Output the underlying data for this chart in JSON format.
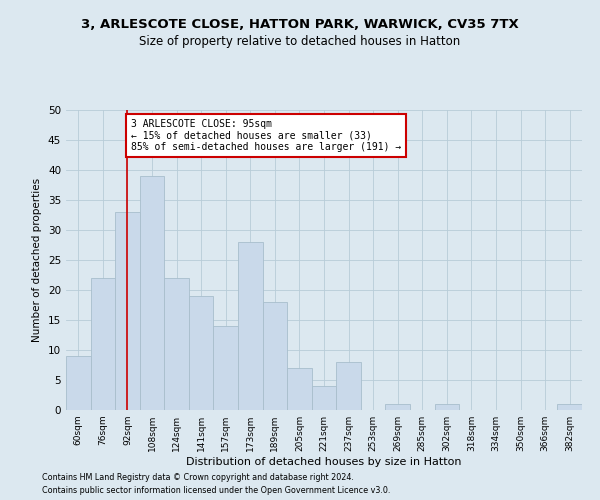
{
  "title1": "3, ARLESCOTE CLOSE, HATTON PARK, WARWICK, CV35 7TX",
  "title2": "Size of property relative to detached houses in Hatton",
  "xlabel": "Distribution of detached houses by size in Hatton",
  "ylabel": "Number of detached properties",
  "footnote1": "Contains HM Land Registry data © Crown copyright and database right 2024.",
  "footnote2": "Contains public sector information licensed under the Open Government Licence v3.0.",
  "bar_labels": [
    "60sqm",
    "76sqm",
    "92sqm",
    "108sqm",
    "124sqm",
    "141sqm",
    "157sqm",
    "173sqm",
    "189sqm",
    "205sqm",
    "221sqm",
    "237sqm",
    "253sqm",
    "269sqm",
    "285sqm",
    "302sqm",
    "318sqm",
    "334sqm",
    "350sqm",
    "366sqm",
    "382sqm"
  ],
  "bar_values": [
    9,
    22,
    33,
    39,
    22,
    19,
    14,
    28,
    18,
    7,
    4,
    8,
    0,
    1,
    0,
    1,
    0,
    0,
    0,
    0,
    1
  ],
  "bar_color": "#c9d9ea",
  "bar_edge_color": "#a8becc",
  "vline_x_index": 2,
  "vline_color": "#cc0000",
  "annotation_text": "3 ARLESCOTE CLOSE: 95sqm\n← 15% of detached houses are smaller (33)\n85% of semi-detached houses are larger (191) →",
  "annotation_box_facecolor": "#ffffff",
  "annotation_box_edgecolor": "#cc0000",
  "ylim": [
    0,
    50
  ],
  "yticks": [
    0,
    5,
    10,
    15,
    20,
    25,
    30,
    35,
    40,
    45,
    50
  ],
  "grid_color": "#b8ccd8",
  "bg_color": "#dce8f0",
  "title1_fontsize": 9.5,
  "title2_fontsize": 8.5,
  "ylabel_fontsize": 7.5,
  "xlabel_fontsize": 8.0,
  "tick_fontsize": 6.5,
  "ytick_fontsize": 7.5,
  "footnote_fontsize": 5.8,
  "annot_fontsize": 7.0
}
